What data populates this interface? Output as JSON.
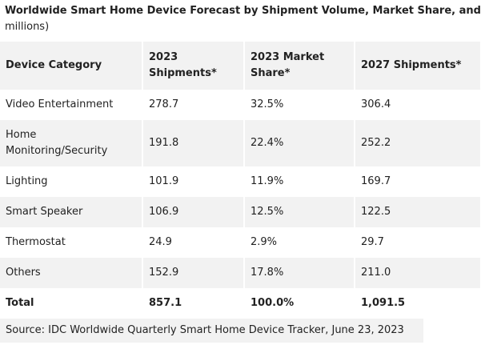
{
  "title_lines": [
    "Worldwide Smart Home Device Forecast by Shipment Volume, Market Share, and",
    "millions)"
  ],
  "table": {
    "header": [
      "Device Category",
      "2023 Shipments*",
      "2023 Market Share*",
      "2027 Shipments*"
    ],
    "rows": [
      [
        "Video Entertainment",
        "278.7",
        "32.5%",
        "306.4"
      ],
      [
        "Home Monitoring/Security",
        "191.8",
        "22.4%",
        "252.2"
      ],
      [
        "Lighting",
        "101.9",
        "11.9%",
        "169.7"
      ],
      [
        "Smart Speaker",
        "106.9",
        "12.5%",
        "122.5"
      ],
      [
        "Thermostat",
        "24.9",
        "2.9%",
        "29.7"
      ],
      [
        "Others",
        "152.9",
        "17.8%",
        "211.0"
      ],
      [
        "Total",
        "857.1",
        "100.0%",
        "1,091.5"
      ]
    ]
  },
  "source": "Source: IDC Worldwide Quarterly Smart Home Device Tracker, June 23, 2023"
}
